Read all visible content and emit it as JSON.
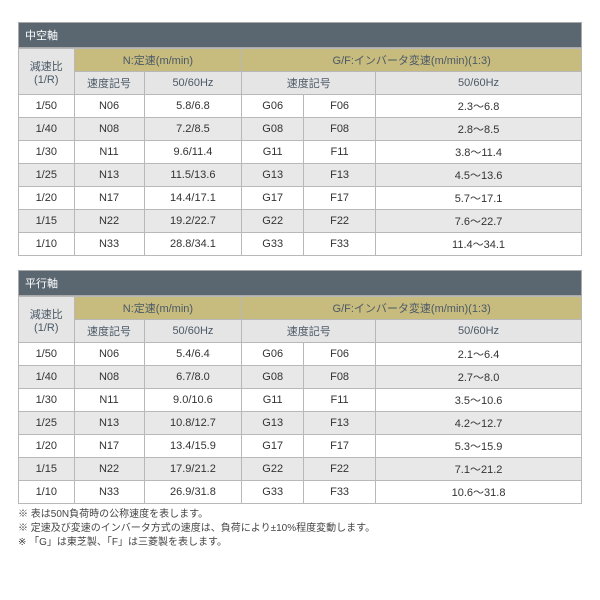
{
  "sections": [
    {
      "title": "中空軸"
    },
    {
      "title": "平行軸"
    }
  ],
  "headers": {
    "ratio": "減速比\n(1/R)",
    "n_group": "N:定速(m/min)",
    "gf_group": "G/F:インバータ変速(m/min)(1:3)",
    "speed_code": "速度記号",
    "freq": "50/60Hz"
  },
  "tables": [
    {
      "rows": [
        {
          "r": "1/50",
          "n": "N06",
          "nf": "5.8/6.8",
          "g": "G06",
          "f": "F06",
          "gf": "2.3～6.8"
        },
        {
          "r": "1/40",
          "n": "N08",
          "nf": "7.2/8.5",
          "g": "G08",
          "f": "F08",
          "gf": "2.8～8.5"
        },
        {
          "r": "1/30",
          "n": "N11",
          "nf": "9.6/11.4",
          "g": "G11",
          "f": "F11",
          "gf": "3.8～11.4"
        },
        {
          "r": "1/25",
          "n": "N13",
          "nf": "11.5/13.6",
          "g": "G13",
          "f": "F13",
          "gf": "4.5～13.6"
        },
        {
          "r": "1/20",
          "n": "N17",
          "nf": "14.4/17.1",
          "g": "G17",
          "f": "F17",
          "gf": "5.7～17.1"
        },
        {
          "r": "1/15",
          "n": "N22",
          "nf": "19.2/22.7",
          "g": "G22",
          "f": "F22",
          "gf": "7.6～22.7"
        },
        {
          "r": "1/10",
          "n": "N33",
          "nf": "28.8/34.1",
          "g": "G33",
          "f": "F33",
          "gf": "11.4～34.1"
        }
      ]
    },
    {
      "rows": [
        {
          "r": "1/50",
          "n": "N06",
          "nf": "5.4/6.4",
          "g": "G06",
          "f": "F06",
          "gf": "2.1～6.4"
        },
        {
          "r": "1/40",
          "n": "N08",
          "nf": "6.7/8.0",
          "g": "G08",
          "f": "F08",
          "gf": "2.7～8.0"
        },
        {
          "r": "1/30",
          "n": "N11",
          "nf": "9.0/10.6",
          "g": "G11",
          "f": "F11",
          "gf": "3.5～10.6"
        },
        {
          "r": "1/25",
          "n": "N13",
          "nf": "10.8/12.7",
          "g": "G13",
          "f": "F13",
          "gf": "4.2～12.7"
        },
        {
          "r": "1/20",
          "n": "N17",
          "nf": "13.4/15.9",
          "g": "G17",
          "f": "F17",
          "gf": "5.3～15.9"
        },
        {
          "r": "1/15",
          "n": "N22",
          "nf": "17.9/21.2",
          "g": "G22",
          "f": "F22",
          "gf": "7.1～21.2"
        },
        {
          "r": "1/10",
          "n": "N33",
          "nf": "26.9/31.8",
          "g": "G33",
          "f": "F33",
          "gf": "10.6～31.8"
        }
      ]
    }
  ],
  "notes": [
    "※ 表は50N負荷時の公称速度を表します。",
    "※ 定速及び変速のインバータ方式の速度は、負荷により±10%程度変動します。",
    "※ 「G」は東芝製、「F」は三菱製を表します。"
  ]
}
